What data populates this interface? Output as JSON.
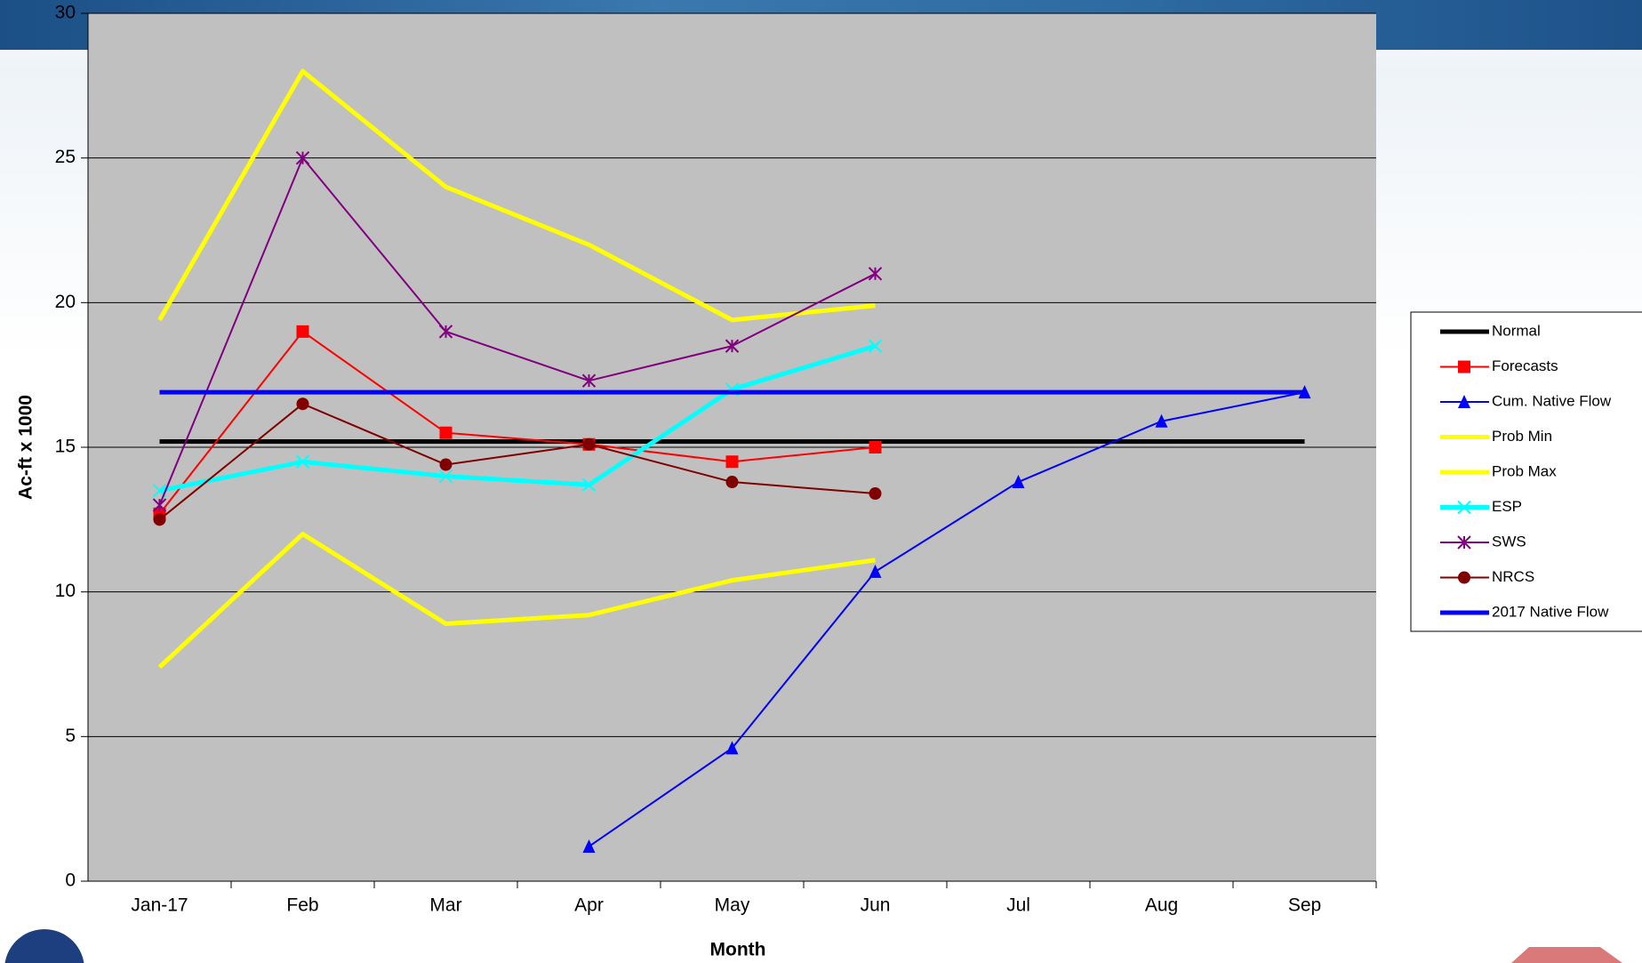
{
  "chart_data": {
    "type": "line",
    "x_label": "Month",
    "y_label": "Ac-ft x 1000",
    "categories": [
      "Jan-17",
      "Feb",
      "Mar",
      "Apr",
      "May",
      "Jun",
      "Jul",
      "Aug",
      "Sep"
    ],
    "ylim": [
      0,
      30
    ],
    "yticks": [
      0,
      5,
      10,
      15,
      20,
      25,
      30
    ],
    "grid": true,
    "legend": "right",
    "series": [
      {
        "name": "Normal",
        "color": "#000000",
        "marker": "none",
        "linewidth": 5,
        "values": [
          15.2,
          15.2,
          15.2,
          15.2,
          15.2,
          15.2,
          15.2,
          15.2,
          15.2
        ]
      },
      {
        "name": "Forecasts",
        "color": "#ff0000",
        "marker": "square",
        "linewidth": 2,
        "values": [
          12.7,
          19,
          15.5,
          15.1,
          14.5,
          15,
          null,
          null,
          null
        ]
      },
      {
        "name": "Cum. Native Flow",
        "color": "#0000ff",
        "marker": "triangle",
        "linewidth": 2,
        "values": [
          null,
          null,
          null,
          1.2,
          4.6,
          10.7,
          13.8,
          15.9,
          16.9
        ]
      },
      {
        "name": "Prob Min",
        "color": "#ffff00",
        "marker": "none",
        "linewidth": 5,
        "values": [
          7.4,
          12,
          8.9,
          9.2,
          10.4,
          11.1,
          null,
          null,
          null
        ]
      },
      {
        "name": "Prob Max",
        "color": "#ffff00",
        "marker": "none",
        "linewidth": 5,
        "values": [
          19.4,
          28,
          24,
          22,
          19.4,
          19.9,
          null,
          null,
          null
        ]
      },
      {
        "name": "ESP",
        "color": "#00ffff",
        "marker": "x",
        "linewidth": 5,
        "values": [
          13.5,
          14.5,
          14,
          13.7,
          17,
          18.5,
          null,
          null,
          null
        ]
      },
      {
        "name": "SWS",
        "color": "#800080",
        "marker": "star",
        "linewidth": 2,
        "values": [
          13,
          25,
          19,
          17.3,
          18.5,
          21,
          null,
          null,
          null
        ]
      },
      {
        "name": "NRCS",
        "color": "#800000",
        "marker": "circle",
        "linewidth": 2,
        "values": [
          12.5,
          16.5,
          14.4,
          15.1,
          13.8,
          13.4,
          null,
          null,
          null
        ]
      },
      {
        "name": "2017 Native Flow",
        "color": "#0000ff",
        "marker": "none",
        "linewidth": 5,
        "values": [
          16.9,
          16.9,
          16.9,
          16.9,
          16.9,
          16.9,
          16.9,
          16.9,
          16.9
        ]
      }
    ]
  }
}
